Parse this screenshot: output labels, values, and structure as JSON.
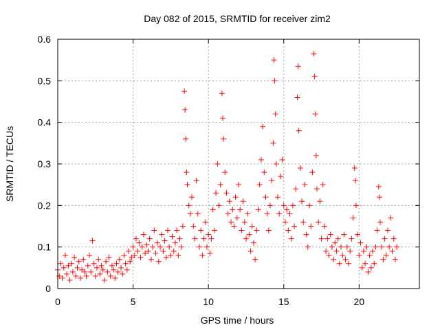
{
  "chart_data": {
    "type": "scatter",
    "title": "Day 082 of 2015, SRMTID for receiver zim2",
    "xlabel": "GPS time / hours",
    "ylabel": "SRMTID / TECUs",
    "xlim": [
      0,
      24
    ],
    "ylim": [
      0,
      0.6
    ],
    "xticks": [
      0,
      5,
      10,
      15,
      20
    ],
    "yticks": [
      0,
      0.1,
      0.2,
      0.3,
      0.4,
      0.5,
      0.6
    ],
    "ytick_labels": [
      "0",
      "0.1",
      "0.2",
      "0.3",
      "0.4",
      "0.5",
      "0.6"
    ],
    "grid": true,
    "marker": "+",
    "series": [
      {
        "name": "SRMTID",
        "color": "#ff0000",
        "points": [
          [
            0.0,
            0.045
          ],
          [
            0.1,
            0.03
          ],
          [
            0.2,
            0.06
          ],
          [
            0.3,
            0.025
          ],
          [
            0.4,
            0.05
          ],
          [
            0.5,
            0.08
          ],
          [
            0.6,
            0.035
          ],
          [
            0.7,
            0.055
          ],
          [
            0.8,
            0.02
          ],
          [
            0.9,
            0.06
          ],
          [
            1.0,
            0.04
          ],
          [
            1.1,
            0.075
          ],
          [
            1.2,
            0.03
          ],
          [
            1.3,
            0.05
          ],
          [
            1.4,
            0.065
          ],
          [
            1.5,
            0.025
          ],
          [
            1.6,
            0.045
          ],
          [
            1.7,
            0.07
          ],
          [
            1.8,
            0.04
          ],
          [
            1.9,
            0.03
          ],
          [
            2.0,
            0.055
          ],
          [
            2.1,
            0.08
          ],
          [
            2.2,
            0.04
          ],
          [
            2.3,
            0.115
          ],
          [
            2.4,
            0.06
          ],
          [
            2.5,
            0.03
          ],
          [
            2.6,
            0.05
          ],
          [
            2.7,
            0.07
          ],
          [
            2.8,
            0.035
          ],
          [
            2.9,
            0.055
          ],
          [
            3.0,
            0.045
          ],
          [
            3.1,
            0.02
          ],
          [
            3.2,
            0.065
          ],
          [
            3.3,
            0.04
          ],
          [
            3.4,
            0.075
          ],
          [
            3.5,
            0.03
          ],
          [
            3.6,
            0.055
          ],
          [
            3.7,
            0.045
          ],
          [
            3.8,
            0.025
          ],
          [
            3.9,
            0.06
          ],
          [
            4.0,
            0.04
          ],
          [
            4.1,
            0.07
          ],
          [
            4.2,
            0.05
          ],
          [
            4.3,
            0.035
          ],
          [
            4.4,
            0.08
          ],
          [
            4.5,
            0.06
          ],
          [
            4.6,
            0.045
          ],
          [
            4.7,
            0.09
          ],
          [
            4.8,
            0.065
          ],
          [
            4.9,
            0.075
          ],
          [
            5.0,
            0.1
          ],
          [
            5.1,
            0.08
          ],
          [
            5.2,
            0.12
          ],
          [
            5.3,
            0.09
          ],
          [
            5.4,
            0.11
          ],
          [
            5.5,
            0.075
          ],
          [
            5.6,
            0.1
          ],
          [
            5.7,
            0.13
          ],
          [
            5.8,
            0.085
          ],
          [
            5.9,
            0.105
          ],
          [
            6.0,
            0.09
          ],
          [
            6.1,
            0.12
          ],
          [
            6.2,
            0.07
          ],
          [
            6.3,
            0.1
          ],
          [
            6.4,
            0.14
          ],
          [
            6.5,
            0.085
          ],
          [
            6.6,
            0.11
          ],
          [
            6.7,
            0.065
          ],
          [
            6.8,
            0.1
          ],
          [
            6.9,
            0.13
          ],
          [
            7.0,
            0.09
          ],
          [
            7.1,
            0.115
          ],
          [
            7.2,
            0.075
          ],
          [
            7.3,
            0.14
          ],
          [
            7.4,
            0.1
          ],
          [
            7.5,
            0.08
          ],
          [
            7.6,
            0.125
          ],
          [
            7.7,
            0.09
          ],
          [
            7.8,
            0.11
          ],
          [
            7.9,
            0.14
          ],
          [
            8.0,
            0.08
          ],
          [
            8.1,
            0.12
          ],
          [
            8.2,
            0.1
          ],
          [
            8.3,
            0.15
          ],
          [
            8.4,
            0.475
          ],
          [
            8.45,
            0.43
          ],
          [
            8.5,
            0.36
          ],
          [
            8.55,
            0.28
          ],
          [
            8.6,
            0.25
          ],
          [
            8.7,
            0.2
          ],
          [
            8.8,
            0.18
          ],
          [
            8.9,
            0.22
          ],
          [
            9.0,
            0.15
          ],
          [
            9.1,
            0.12
          ],
          [
            9.2,
            0.26
          ],
          [
            9.3,
            0.18
          ],
          [
            9.4,
            0.1
          ],
          [
            9.5,
            0.14
          ],
          [
            9.6,
            0.08
          ],
          [
            9.7,
            0.12
          ],
          [
            9.8,
            0.16
          ],
          [
            9.9,
            0.1
          ],
          [
            10.0,
            0.13
          ],
          [
            10.1,
            0.085
          ],
          [
            10.2,
            0.12
          ],
          [
            10.3,
            0.19
          ],
          [
            10.4,
            0.14
          ],
          [
            10.5,
            0.23
          ],
          [
            10.6,
            0.3
          ],
          [
            10.7,
            0.2
          ],
          [
            10.8,
            0.25
          ],
          [
            10.9,
            0.47
          ],
          [
            10.95,
            0.41
          ],
          [
            11.0,
            0.36
          ],
          [
            11.1,
            0.28
          ],
          [
            11.2,
            0.23
          ],
          [
            11.3,
            0.18
          ],
          [
            11.4,
            0.21
          ],
          [
            11.5,
            0.16
          ],
          [
            11.6,
            0.19
          ],
          [
            11.7,
            0.15
          ],
          [
            11.8,
            0.22
          ],
          [
            11.9,
            0.17
          ],
          [
            12.0,
            0.25
          ],
          [
            12.1,
            0.19
          ],
          [
            12.2,
            0.14
          ],
          [
            12.3,
            0.21
          ],
          [
            12.4,
            0.16
          ],
          [
            12.5,
            0.12
          ],
          [
            12.6,
            0.18
          ],
          [
            12.7,
            0.13
          ],
          [
            12.8,
            0.09
          ],
          [
            12.9,
            0.15
          ],
          [
            13.0,
            0.11
          ],
          [
            13.1,
            0.07
          ],
          [
            13.2,
            0.14
          ],
          [
            13.3,
            0.19
          ],
          [
            13.4,
            0.25
          ],
          [
            13.5,
            0.31
          ],
          [
            13.6,
            0.39
          ],
          [
            13.7,
            0.28
          ],
          [
            13.8,
            0.22
          ],
          [
            13.9,
            0.18
          ],
          [
            14.0,
            0.14
          ],
          [
            14.1,
            0.2
          ],
          [
            14.2,
            0.26
          ],
          [
            14.3,
            0.35
          ],
          [
            14.35,
            0.55
          ],
          [
            14.4,
            0.5
          ],
          [
            14.45,
            0.42
          ],
          [
            14.5,
            0.3
          ],
          [
            14.6,
            0.22
          ],
          [
            14.7,
            0.18
          ],
          [
            14.8,
            0.27
          ],
          [
            14.9,
            0.31
          ],
          [
            15.0,
            0.2
          ],
          [
            15.1,
            0.16
          ],
          [
            15.2,
            0.19
          ],
          [
            15.3,
            0.14
          ],
          [
            15.4,
            0.18
          ],
          [
            15.5,
            0.12
          ],
          [
            15.6,
            0.2
          ],
          [
            15.7,
            0.15
          ],
          [
            15.8,
            0.24
          ],
          [
            15.9,
            0.46
          ],
          [
            15.95,
            0.535
          ],
          [
            16.0,
            0.38
          ],
          [
            16.1,
            0.29
          ],
          [
            16.2,
            0.21
          ],
          [
            16.3,
            0.16
          ],
          [
            16.4,
            0.25
          ],
          [
            16.5,
            0.13
          ],
          [
            16.6,
            0.1
          ],
          [
            16.7,
            0.2
          ],
          [
            16.8,
            0.15
          ],
          [
            16.9,
            0.28
          ],
          [
            17.0,
            0.565
          ],
          [
            17.05,
            0.51
          ],
          [
            17.1,
            0.42
          ],
          [
            17.15,
            0.32
          ],
          [
            17.2,
            0.24
          ],
          [
            17.3,
            0.16
          ],
          [
            17.4,
            0.21
          ],
          [
            17.5,
            0.12
          ],
          [
            17.6,
            0.25
          ],
          [
            17.7,
            0.15
          ],
          [
            17.8,
            0.09
          ],
          [
            17.9,
            0.12
          ],
          [
            18.0,
            0.08
          ],
          [
            18.1,
            0.13
          ],
          [
            18.2,
            0.1
          ],
          [
            18.3,
            0.07
          ],
          [
            18.4,
            0.11
          ],
          [
            18.5,
            0.09
          ],
          [
            18.6,
            0.12
          ],
          [
            18.7,
            0.06
          ],
          [
            18.8,
            0.1
          ],
          [
            18.9,
            0.08
          ],
          [
            19.0,
            0.13
          ],
          [
            19.1,
            0.07
          ],
          [
            19.2,
            0.1
          ],
          [
            19.3,
            0.06
          ],
          [
            19.4,
            0.09
          ],
          [
            19.5,
            0.12
          ],
          [
            19.6,
            0.17
          ],
          [
            19.7,
            0.29
          ],
          [
            19.75,
            0.26
          ],
          [
            19.8,
            0.2
          ],
          [
            19.9,
            0.13
          ],
          [
            20.0,
            0.08
          ],
          [
            20.1,
            0.11
          ],
          [
            20.2,
            0.05
          ],
          [
            20.3,
            0.09
          ],
          [
            20.4,
            0.06
          ],
          [
            20.5,
            0.1
          ],
          [
            20.6,
            0.04
          ],
          [
            20.7,
            0.08
          ],
          [
            20.8,
            0.05
          ],
          [
            20.9,
            0.09
          ],
          [
            21.0,
            0.06
          ],
          [
            21.1,
            0.1
          ],
          [
            21.2,
            0.14
          ],
          [
            21.3,
            0.245
          ],
          [
            21.35,
            0.22
          ],
          [
            21.4,
            0.16
          ],
          [
            21.5,
            0.1
          ],
          [
            21.6,
            0.07
          ],
          [
            21.7,
            0.12
          ],
          [
            21.8,
            0.08
          ],
          [
            21.9,
            0.14
          ],
          [
            22.0,
            0.1
          ],
          [
            22.1,
            0.17
          ],
          [
            22.2,
            0.09
          ],
          [
            22.3,
            0.12
          ],
          [
            22.4,
            0.07
          ],
          [
            22.5,
            0.1
          ]
        ]
      }
    ]
  }
}
